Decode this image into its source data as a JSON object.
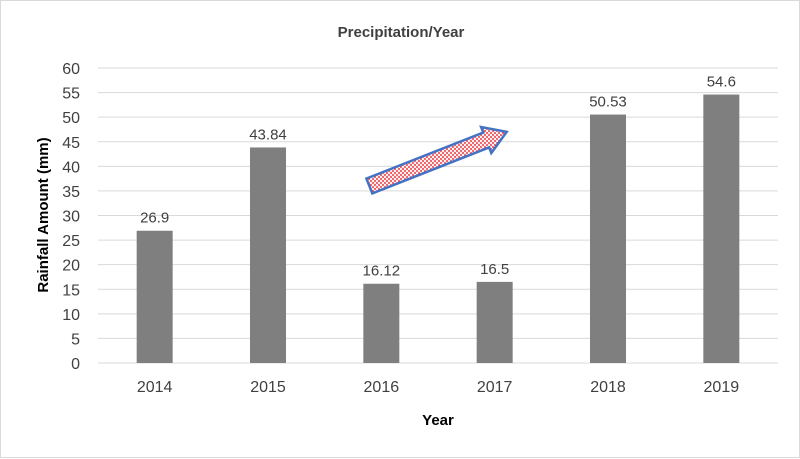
{
  "chart_data": {
    "type": "bar",
    "title": "Precipitation/Year",
    "xlabel": "Year",
    "ylabel": "Rainfall Amount (mm)",
    "categories": [
      "2014",
      "2015",
      "2016",
      "2017",
      "2018",
      "2019"
    ],
    "values": [
      26.9,
      43.84,
      16.12,
      16.5,
      50.53,
      54.6
    ],
    "data_labels": [
      "26.9",
      "43.84",
      "16.12",
      "16.5",
      "50.53",
      "54.6"
    ],
    "ylim": [
      0,
      60
    ],
    "yticks": [
      "0",
      "5",
      "10",
      "15",
      "20",
      "25",
      "30",
      "35",
      "40",
      "45",
      "50",
      "55",
      "60"
    ],
    "grid": true,
    "legend": "none",
    "bar_color": "#7f7f7f",
    "annotation": {
      "type": "arrow",
      "fill": "#e8343c",
      "pattern": "crosshatch",
      "outline": "#4472c4",
      "from": {
        "x": "2016",
        "y": 36
      },
      "to": {
        "x": "2017",
        "y": 47
      }
    }
  }
}
